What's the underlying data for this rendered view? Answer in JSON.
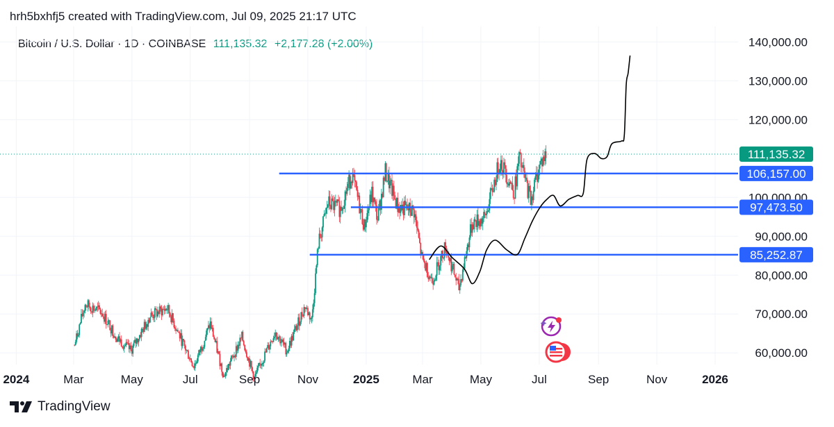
{
  "attribution": "hrh5bxhfj5 created with TradingView.com, Jul 09, 2025 21:17 UTC",
  "legend": {
    "symbol": "Bitcoin / U.S. Dollar · 1D · COINBASE",
    "price": "111,135.32",
    "change": "+2,177.28 (+2.00%)"
  },
  "brand": "TradingView",
  "colors": {
    "up": "#089981",
    "down": "#f23645",
    "level": "#2962ff",
    "last": "#089981",
    "path": "#000000"
  },
  "icons": [
    "tradingview-logo-icon",
    "lightning-icon",
    "us-flag-icon"
  ],
  "chart_data": {
    "type": "candlestick",
    "title": "Bitcoin / U.S. Dollar · 1D · COINBASE",
    "ylim": [
      57000,
      144000
    ],
    "yticks": [
      {
        "value": 60000,
        "label": "60,000.00"
      },
      {
        "value": 70000,
        "label": "70,000.00"
      },
      {
        "value": 80000,
        "label": "80,000.00"
      },
      {
        "value": 90000,
        "label": "90,000.00"
      },
      {
        "value": 100000,
        "label": "100,000.00"
      },
      {
        "value": 120000,
        "label": "120,000.00"
      },
      {
        "value": 130000,
        "label": "130,000.00"
      },
      {
        "value": 140000,
        "label": "140,000.00"
      }
    ],
    "xlim": [
      "2023-12-15",
      "2026-01-25"
    ],
    "xticks": [
      {
        "date": "2024-01-01",
        "label": "2024",
        "year": true
      },
      {
        "date": "2024-03-01",
        "label": "Mar"
      },
      {
        "date": "2024-05-01",
        "label": "May"
      },
      {
        "date": "2024-07-01",
        "label": "Jul"
      },
      {
        "date": "2024-09-01",
        "label": "Sep"
      },
      {
        "date": "2024-11-01",
        "label": "Nov"
      },
      {
        "date": "2025-01-01",
        "label": "2025",
        "year": true
      },
      {
        "date": "2025-03-01",
        "label": "Mar"
      },
      {
        "date": "2025-05-01",
        "label": "May"
      },
      {
        "date": "2025-07-01",
        "label": "Jul"
      },
      {
        "date": "2025-09-01",
        "label": "Sep"
      },
      {
        "date": "2025-11-01",
        "label": "Nov"
      },
      {
        "date": "2026-01-01",
        "label": "2026",
        "year": true
      }
    ],
    "last_price": {
      "value": 111135.32,
      "label": "111,135.32"
    },
    "levels": [
      {
        "value": 106157.0,
        "label": "106,157.00",
        "start": "2024-10-02"
      },
      {
        "value": 97473.5,
        "label": "97,473.50",
        "start": "2024-12-16"
      },
      {
        "value": 85252.87,
        "label": "85,252.87",
        "start": "2024-11-03"
      }
    ],
    "price_path": [
      {
        "date": "2024-03-02",
        "close": 62000
      },
      {
        "date": "2024-03-13",
        "close": 72500
      },
      {
        "date": "2024-03-30",
        "close": 70500
      },
      {
        "date": "2024-04-15",
        "close": 64000
      },
      {
        "date": "2024-04-30",
        "close": 60500
      },
      {
        "date": "2024-05-20",
        "close": 69500
      },
      {
        "date": "2024-06-07",
        "close": 71500
      },
      {
        "date": "2024-06-25",
        "close": 61500
      },
      {
        "date": "2024-07-05",
        "close": 56500
      },
      {
        "date": "2024-07-22",
        "close": 67500
      },
      {
        "date": "2024-08-05",
        "close": 54000
      },
      {
        "date": "2024-08-24",
        "close": 64000
      },
      {
        "date": "2024-09-06",
        "close": 53500
      },
      {
        "date": "2024-09-28",
        "close": 65500
      },
      {
        "date": "2024-10-10",
        "close": 60500
      },
      {
        "date": "2024-10-29",
        "close": 72000
      },
      {
        "date": "2024-11-05",
        "close": 68500
      },
      {
        "date": "2024-11-12",
        "close": 88000
      },
      {
        "date": "2024-11-22",
        "close": 98500
      },
      {
        "date": "2024-12-05",
        "close": 97000
      },
      {
        "date": "2024-12-17",
        "close": 106000
      },
      {
        "date": "2024-12-30",
        "close": 92500
      },
      {
        "date": "2025-01-07",
        "close": 101000
      },
      {
        "date": "2025-01-13",
        "close": 94500
      },
      {
        "date": "2025-01-21",
        "close": 106500
      },
      {
        "date": "2025-02-03",
        "close": 97500
      },
      {
        "date": "2025-02-20",
        "close": 96500
      },
      {
        "date": "2025-02-28",
        "close": 84500
      },
      {
        "date": "2025-03-11",
        "close": 78500
      },
      {
        "date": "2025-03-25",
        "close": 87500
      },
      {
        "date": "2025-04-08",
        "close": 76500
      },
      {
        "date": "2025-04-22",
        "close": 93500
      },
      {
        "date": "2025-05-05",
        "close": 94500
      },
      {
        "date": "2025-05-21",
        "close": 109500
      },
      {
        "date": "2025-06-05",
        "close": 101500
      },
      {
        "date": "2025-06-10",
        "close": 110000
      },
      {
        "date": "2025-06-22",
        "close": 99500
      },
      {
        "date": "2025-07-02",
        "close": 108800
      },
      {
        "date": "2025-07-09",
        "close": 111135
      }
    ],
    "projection": [
      {
        "date": "2025-03-08",
        "value": 84000
      },
      {
        "date": "2025-03-20",
        "value": 87500
      },
      {
        "date": "2025-04-01",
        "value": 84500
      },
      {
        "date": "2025-04-14",
        "value": 81500
      },
      {
        "date": "2025-04-22",
        "value": 77800
      },
      {
        "date": "2025-04-30",
        "value": 81000
      },
      {
        "date": "2025-05-07",
        "value": 86500
      },
      {
        "date": "2025-05-16",
        "value": 89000
      },
      {
        "date": "2025-05-28",
        "value": 86500
      },
      {
        "date": "2025-06-08",
        "value": 85300
      },
      {
        "date": "2025-06-16",
        "value": 89500
      },
      {
        "date": "2025-06-24",
        "value": 94000
      },
      {
        "date": "2025-07-02",
        "value": 97500
      },
      {
        "date": "2025-07-09",
        "value": 99500
      },
      {
        "date": "2025-07-16",
        "value": 100500
      },
      {
        "date": "2025-07-23",
        "value": 97800
      },
      {
        "date": "2025-08-01",
        "value": 99500
      },
      {
        "date": "2025-08-10",
        "value": 100500
      },
      {
        "date": "2025-08-16",
        "value": 101000
      },
      {
        "date": "2025-08-20",
        "value": 109800
      },
      {
        "date": "2025-08-28",
        "value": 111300
      },
      {
        "date": "2025-09-04",
        "value": 110000
      },
      {
        "date": "2025-09-10",
        "value": 110500
      },
      {
        "date": "2025-09-15",
        "value": 113800
      },
      {
        "date": "2025-09-25",
        "value": 114500
      },
      {
        "date": "2025-09-28",
        "value": 116000
      },
      {
        "date": "2025-09-30",
        "value": 129000
      },
      {
        "date": "2025-10-02",
        "value": 132000
      },
      {
        "date": "2025-10-04",
        "value": 136500
      }
    ]
  }
}
